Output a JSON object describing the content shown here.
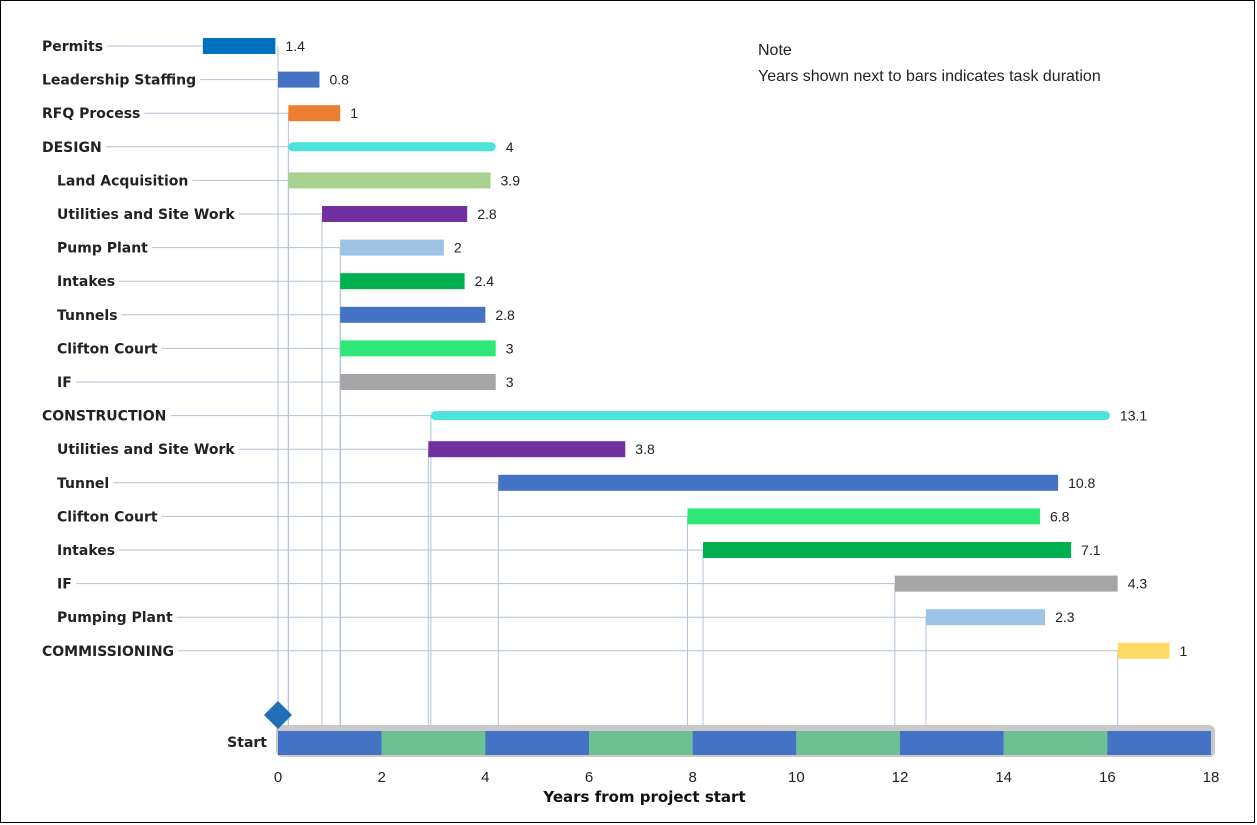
{
  "chart_data": {
    "type": "bar",
    "subtype": "gantt",
    "xlabel": "Years from project start",
    "xlim": [
      0,
      18
    ],
    "xticks": [
      0,
      2,
      4,
      6,
      8,
      10,
      12,
      14,
      16,
      18
    ],
    "start_label": "Start",
    "note": {
      "title": "Note",
      "text": "Years shown next to bars indicates task duration"
    },
    "tasks": [
      {
        "label": "Permits",
        "start": -1.45,
        "duration": 1.4,
        "value_label": "1.4",
        "color": "#0070c0",
        "kind": "task",
        "indent": false
      },
      {
        "label": "Leadership Staffing",
        "start": 0.0,
        "duration": 0.8,
        "value_label": "0.8",
        "color": "#4472c4",
        "kind": "task",
        "indent": false
      },
      {
        "label": "RFQ Process",
        "start": 0.2,
        "duration": 1.0,
        "value_label": "1",
        "color": "#ed7d31",
        "kind": "task",
        "indent": false
      },
      {
        "label": "DESIGN",
        "start": 0.2,
        "duration": 4.0,
        "value_label": "4",
        "color": "#4be3dc",
        "kind": "summary",
        "indent": false
      },
      {
        "label": "Land Acquisition",
        "start": 0.2,
        "duration": 3.9,
        "value_label": "3.9",
        "color": "#a9d18e",
        "kind": "task",
        "indent": true
      },
      {
        "label": "Utilities and Site Work",
        "start": 0.85,
        "duration": 2.8,
        "value_label": "2.8",
        "color": "#7030a0",
        "kind": "task",
        "indent": true
      },
      {
        "label": "Pump Plant",
        "start": 1.2,
        "duration": 2.0,
        "value_label": "2",
        "color": "#9dc3e6",
        "kind": "task",
        "indent": true
      },
      {
        "label": "Intakes",
        "start": 1.2,
        "duration": 2.4,
        "value_label": "2.4",
        "color": "#00b050",
        "kind": "task",
        "indent": true
      },
      {
        "label": "Tunnels",
        "start": 1.2,
        "duration": 2.8,
        "value_label": "2.8",
        "color": "#4472c4",
        "kind": "task",
        "indent": true
      },
      {
        "label": "Clifton Court",
        "start": 1.2,
        "duration": 3.0,
        "value_label": "3",
        "color": "#2ee879",
        "kind": "task",
        "indent": true
      },
      {
        "label": "IF",
        "start": 1.2,
        "duration": 3.0,
        "value_label": "3",
        "color": "#a5a5a5",
        "kind": "task",
        "indent": true
      },
      {
        "label": "CONSTRUCTION",
        "start": 2.95,
        "duration": 13.1,
        "value_label": "13.1",
        "color": "#4be3dc",
        "kind": "summary",
        "indent": false
      },
      {
        "label": "Utilities and Site Work",
        "start": 2.9,
        "duration": 3.8,
        "value_label": "3.8",
        "color": "#7030a0",
        "kind": "task",
        "indent": true
      },
      {
        "label": "Tunnel",
        "start": 4.25,
        "duration": 10.8,
        "value_label": "10.8",
        "color": "#4472c4",
        "kind": "task",
        "indent": true
      },
      {
        "label": "Clifton Court",
        "start": 7.9,
        "duration": 6.8,
        "value_label": "6.8",
        "color": "#2ee879",
        "kind": "task",
        "indent": true
      },
      {
        "label": "Intakes",
        "start": 8.2,
        "duration": 7.1,
        "value_label": "7.1",
        "color": "#00b050",
        "kind": "task",
        "indent": true
      },
      {
        "label": "IF",
        "start": 11.9,
        "duration": 4.3,
        "value_label": "4.3",
        "color": "#a5a5a5",
        "kind": "task",
        "indent": true
      },
      {
        "label": "Pumping Plant",
        "start": 12.5,
        "duration": 2.3,
        "value_label": "2.3",
        "color": "#9dc3e6",
        "kind": "task",
        "indent": true
      },
      {
        "label": "COMMISSIONING",
        "start": 16.2,
        "duration": 1.0,
        "value_label": "1",
        "color": "#ffd966",
        "kind": "task",
        "indent": false
      }
    ],
    "timeline_colors": [
      "#4472c4",
      "#6dc094"
    ]
  }
}
